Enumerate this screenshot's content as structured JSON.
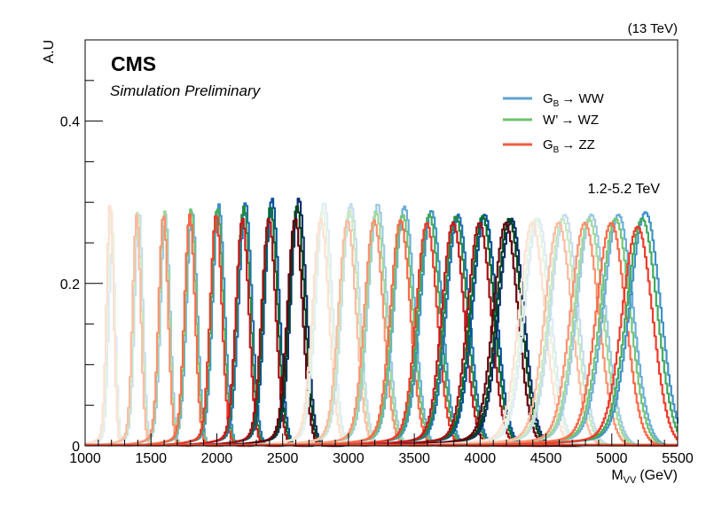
{
  "header": {
    "energy": "(13 TeV)",
    "experiment": "CMS",
    "status": "Simulation Preliminary",
    "mass_range": "1.2-5.2 TeV"
  },
  "legend": [
    {
      "label": "G",
      "sub": "B",
      "arrow": "→",
      "final": "WW",
      "color": "#5fa4cf"
    },
    {
      "label": "W’",
      "sub": "",
      "arrow": "→",
      "final": "WZ",
      "color": "#6fc16f"
    },
    {
      "label": "G",
      "sub": "B",
      "arrow": "→",
      "final": "ZZ",
      "color": "#ef5c40"
    }
  ],
  "chart_data": {
    "type": "line",
    "title": "",
    "xlabel": "M",
    "xlabel_sub": "VV",
    "xlabel_unit": "(GeV)",
    "ylabel": "A.U",
    "xlim": [
      1000,
      5500
    ],
    "ylim": [
      0,
      0.5
    ],
    "x_ticks": [
      1000,
      1500,
      2000,
      2500,
      3000,
      3500,
      4000,
      4500,
      5000,
      5500
    ],
    "x_tick_labels": [
      "1000",
      "1500",
      "2000",
      "2500",
      "3000",
      "3500",
      "4000",
      "4500",
      "5000",
      "5500"
    ],
    "y_ticks": [
      0,
      0.2,
      0.4
    ],
    "y_tick_labels": [
      "0",
      "0.2",
      "0.4"
    ],
    "grid": false,
    "legend_position": "top-right",
    "resonance_masses": [
      1200,
      1400,
      1600,
      1800,
      2000,
      2200,
      2400,
      2600,
      2800,
      3000,
      3200,
      3400,
      3600,
      3800,
      4000,
      4200,
      4400,
      4600,
      4800,
      5000,
      5200
    ],
    "series": [
      {
        "name": "G_B → WW",
        "colors": [
          "#deebf7",
          "#c6dbef",
          "#9ecae1",
          "#6baed6",
          "#4292c6",
          "#2171b5",
          "#08519c",
          "#08306b",
          "#deebf7",
          "#c6dbef",
          "#9ecae1",
          "#6baed6",
          "#4292c6",
          "#2171b5",
          "#08519c",
          "#08306b",
          "#deebf7",
          "#c6dbef",
          "#9ecae1",
          "#6baed6",
          "#4292c6"
        ],
        "peaks": [
          0.245,
          0.29,
          0.285,
          0.29,
          0.298,
          0.3,
          0.305,
          0.305,
          0.3,
          0.298,
          0.298,
          0.295,
          0.29,
          0.285,
          0.285,
          0.28,
          0.28,
          0.285,
          0.285,
          0.285,
          0.288
        ],
        "peak_offset": [
          5,
          8,
          10,
          12,
          15,
          18,
          20,
          22,
          15,
          18,
          22,
          25,
          30,
          32,
          35,
          38,
          40,
          42,
          45,
          50,
          55
        ]
      },
      {
        "name": "W’ → WZ",
        "colors": [
          "#e5f5e0",
          "#c7e9c0",
          "#a1d99b",
          "#74c476",
          "#41ab5d",
          "#238b45",
          "#006d2c",
          "#00441b",
          "#e5f5e0",
          "#c7e9c0",
          "#a1d99b",
          "#74c476",
          "#41ab5d",
          "#238b45",
          "#006d2c",
          "#00441b",
          "#e5f5e0",
          "#c7e9c0",
          "#a1d99b",
          "#74c476",
          "#41ab5d"
        ],
        "peaks": [
          0.29,
          0.29,
          0.29,
          0.292,
          0.293,
          0.295,
          0.295,
          0.295,
          0.29,
          0.29,
          0.288,
          0.285,
          0.285,
          0.283,
          0.283,
          0.28,
          0.28,
          0.28,
          0.28,
          0.28,
          0.28
        ],
        "peak_offset": [
          -2,
          0,
          2,
          4,
          5,
          6,
          8,
          10,
          5,
          8,
          10,
          12,
          14,
          16,
          18,
          20,
          22,
          24,
          26,
          28,
          30
        ]
      },
      {
        "name": "G_B → ZZ",
        "colors": [
          "#fee0d2",
          "#fcbba1",
          "#fc9272",
          "#fb6a4a",
          "#ef3b2c",
          "#cb181d",
          "#a50f15",
          "#67000d",
          "#fee0d2",
          "#fcbba1",
          "#fc9272",
          "#fb6a4a",
          "#ef3b2c",
          "#cb181d",
          "#a50f15",
          "#67000d",
          "#fee0d2",
          "#fcbba1",
          "#fc9272",
          "#fb6a4a",
          "#ef3b2c"
        ],
        "peaks": [
          0.3,
          0.285,
          0.285,
          0.285,
          0.285,
          0.28,
          0.28,
          0.28,
          0.28,
          0.278,
          0.278,
          0.278,
          0.275,
          0.275,
          0.275,
          0.275,
          0.275,
          0.275,
          0.275,
          0.275,
          0.27
        ],
        "peak_offset": [
          -10,
          -8,
          -5,
          -5,
          -5,
          -5,
          -5,
          -5,
          -10,
          -8,
          -6,
          -5,
          -5,
          -5,
          -5,
          -5,
          -5,
          -5,
          -5,
          -5,
          -5
        ]
      }
    ]
  }
}
